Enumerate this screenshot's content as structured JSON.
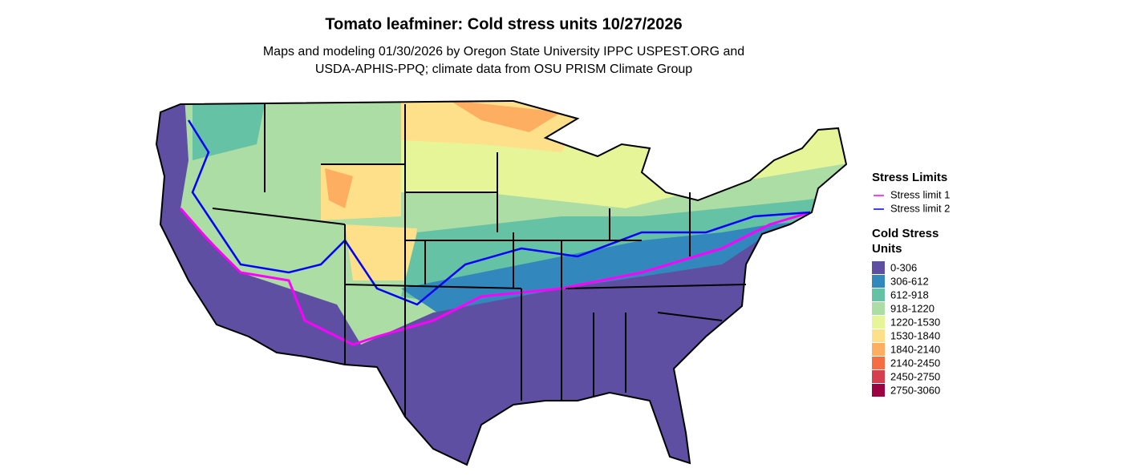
{
  "map": {
    "title": "Tomato leafminer: Cold stress units 10/27/2026",
    "subtitle": [
      "Maps and modeling 01/30/2026 by Oregon State University IPPC USPEST.ORG and",
      "USDA-APHIS-PPQ; climate data from OSU PRISM Climate Group"
    ],
    "limits_legend": {
      "title": "Stress Limits",
      "items": [
        {
          "name": "Stress limit 1",
          "color": "#ff00ff"
        },
        {
          "name": "Stress limit 2",
          "color": "#0000ff"
        }
      ]
    },
    "units_legend": {
      "title": [
        "Cold Stress",
        "Units"
      ],
      "items": [
        {
          "name": "0-306",
          "color": "#5e4fa2"
        },
        {
          "name": "306-612",
          "color": "#3288bd"
        },
        {
          "name": "612-918",
          "color": "#66c2a5"
        },
        {
          "name": "918-1220",
          "color": "#abdda4"
        },
        {
          "name": "1220-1530",
          "color": "#e6f598"
        },
        {
          "name": "1530-1840",
          "color": "#fee08b"
        },
        {
          "name": "1840-2140",
          "color": "#fdae61"
        },
        {
          "name": "2140-2450",
          "color": "#f46d43"
        },
        {
          "name": "2450-2750",
          "color": "#d53e4f"
        },
        {
          "name": "2750-3060",
          "color": "#9e0142"
        }
      ]
    }
  }
}
